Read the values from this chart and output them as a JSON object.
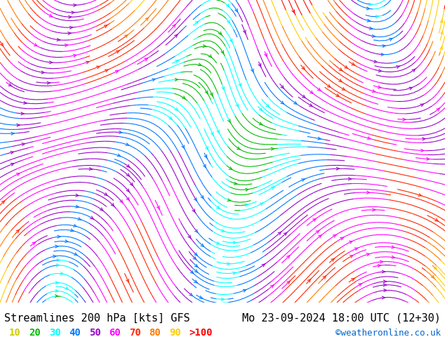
{
  "title_left": "Streamlines 200 hPa [kts] GFS",
  "title_right": "Mo 23-09-2024 18:00 UTC (12+30)",
  "credit": "©weatheronline.co.uk",
  "legend_values": [
    "10",
    "20",
    "30",
    "40",
    "50",
    "60",
    "70",
    "80",
    "90",
    ">100"
  ],
  "legend_colors": [
    "#aaaa00",
    "#00cc00",
    "#00ffff",
    "#0088ff",
    "#aa00ff",
    "#ff00ff",
    "#ff0000",
    "#ff6600",
    "#ffaa00",
    "#ff0000"
  ],
  "bg_color": "#ffffff",
  "map_bg": "#e8f5e8",
  "land_color": "#d0d0d0",
  "title_fontsize": 11,
  "credit_fontsize": 9,
  "legend_fontsize": 10,
  "streamline_colors": {
    "10": "#cccc00",
    "20": "#00bb00",
    "30": "#00ffff",
    "40": "#0077ff",
    "50": "#9900cc",
    "60": "#ff00ff",
    "70": "#ff2200",
    "80": "#ff7700",
    "90": "#ffcc00",
    "100": "#ff0000"
  }
}
